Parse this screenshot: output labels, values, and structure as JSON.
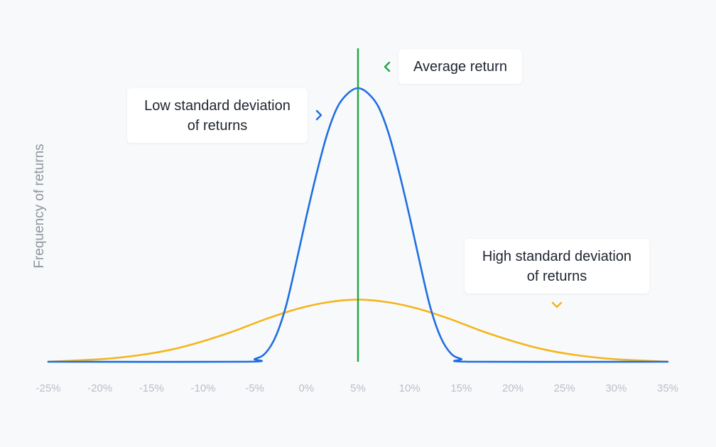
{
  "chart_data": {
    "type": "line",
    "ylabel": "Frequency of returns",
    "xlabel": "",
    "x_ticks": [
      "-25%",
      "-20%",
      "-15%",
      "-10%",
      "-5%",
      "0%",
      "5%",
      "10%",
      "15%",
      "20%",
      "25%",
      "30%",
      "35%"
    ],
    "xlim": [
      -25,
      35
    ],
    "ylim": [
      0,
      1
    ],
    "grid": false,
    "average_return": 5,
    "series": [
      {
        "color": "#1f6fe0",
        "label": [
          "Low standard deviation",
          "of returns"
        ],
        "points": [
          [
            -25,
            0.0
          ],
          [
            -6,
            0.0
          ],
          [
            -5,
            0.01
          ],
          [
            -4,
            0.03
          ],
          [
            -3,
            0.09
          ],
          [
            -2,
            0.2
          ],
          [
            -1,
            0.36
          ],
          [
            0,
            0.53
          ],
          [
            1,
            0.69
          ],
          [
            2,
            0.83
          ],
          [
            3,
            0.93
          ],
          [
            4,
            0.98
          ],
          [
            5,
            1.0
          ],
          [
            6,
            0.98
          ],
          [
            7,
            0.93
          ],
          [
            8,
            0.83
          ],
          [
            9,
            0.69
          ],
          [
            10,
            0.53
          ],
          [
            11,
            0.36
          ],
          [
            12,
            0.2
          ],
          [
            13,
            0.09
          ],
          [
            14,
            0.03
          ],
          [
            15,
            0.01
          ],
          [
            16,
            0.0
          ],
          [
            35,
            0.0
          ]
        ]
      },
      {
        "color": "#f5b51b",
        "label": [
          "High standard deviation",
          "of returns"
        ],
        "points": [
          [
            -25,
            0.0
          ],
          [
            -22,
            0.005
          ],
          [
            -19,
            0.012
          ],
          [
            -16,
            0.025
          ],
          [
            -13,
            0.045
          ],
          [
            -10,
            0.075
          ],
          [
            -7,
            0.112
          ],
          [
            -4,
            0.155
          ],
          [
            -1,
            0.192
          ],
          [
            2,
            0.217
          ],
          [
            5,
            0.227
          ],
          [
            8,
            0.217
          ],
          [
            11,
            0.192
          ],
          [
            14,
            0.155
          ],
          [
            17,
            0.112
          ],
          [
            20,
            0.075
          ],
          [
            23,
            0.045
          ],
          [
            26,
            0.025
          ],
          [
            29,
            0.012
          ],
          [
            32,
            0.005
          ],
          [
            35,
            0.0
          ]
        ]
      }
    ],
    "average_color": "#1fa645",
    "average_label": "Average return"
  },
  "colors": {
    "background": "#f8f9fb",
    "tick_text": "#b9bec8",
    "axis_label": "#8f959e"
  },
  "icons": {
    "low_sd_pointer": "chevron-right-icon",
    "average_pointer": "chevron-left-icon",
    "high_sd_pointer": "chevron-down-icon"
  }
}
